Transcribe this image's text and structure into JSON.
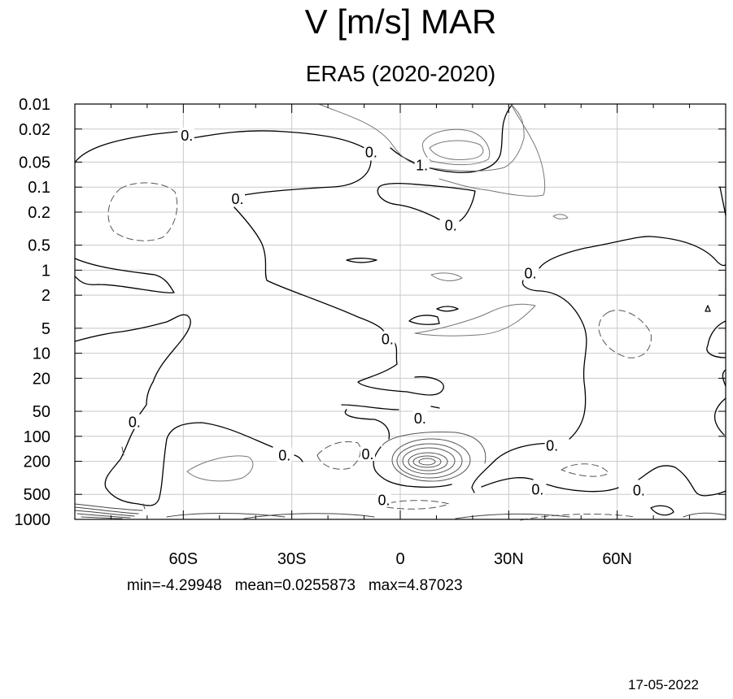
{
  "title": "V [m/s] MAR",
  "subtitle": "ERA5 (2020-2020)",
  "stats": {
    "min_label": "min=-4.29948",
    "mean_label": "mean=0.0255873",
    "max_label": "max=4.87023"
  },
  "date": "17-05-2022",
  "chart_data": {
    "type": "contour",
    "title": "ERA5 (2020-2020)",
    "variable": "V [m/s]",
    "y_scale": "log",
    "y_reversed": true,
    "grid": true,
    "xlim": [
      -90,
      90
    ],
    "ylim": [
      1000,
      0.01
    ],
    "x_ticks": [
      {
        "value": -60,
        "label": "60S"
      },
      {
        "value": -30,
        "label": "30S"
      },
      {
        "value": 0,
        "label": "0"
      },
      {
        "value": 30,
        "label": "30N"
      },
      {
        "value": 60,
        "label": "60N"
      }
    ],
    "y_ticks": [
      {
        "value": 0.01,
        "label": "0.01"
      },
      {
        "value": 0.02,
        "label": "0.02"
      },
      {
        "value": 0.05,
        "label": "0.05"
      },
      {
        "value": 0.1,
        "label": "0.1"
      },
      {
        "value": 0.2,
        "label": "0.2"
      },
      {
        "value": 0.5,
        "label": "0.5"
      },
      {
        "value": 1,
        "label": "1"
      },
      {
        "value": 2,
        "label": "2"
      },
      {
        "value": 5,
        "label": "5"
      },
      {
        "value": 10,
        "label": "10"
      },
      {
        "value": 20,
        "label": "20"
      },
      {
        "value": 50,
        "label": "50"
      },
      {
        "value": 100,
        "label": "100"
      },
      {
        "value": 200,
        "label": "200"
      },
      {
        "value": 500,
        "label": "500"
      },
      {
        "value": 1000,
        "label": "1000"
      }
    ],
    "contour_labels": [
      {
        "text": "0.",
        "lat": -59,
        "p": 0.024
      },
      {
        "text": "0.",
        "lat": -8,
        "p": 0.038
      },
      {
        "text": "0.",
        "lat": -45,
        "p": 0.14
      },
      {
        "text": "1.",
        "lat": 6,
        "p": 0.055
      },
      {
        "text": "0.",
        "lat": 14,
        "p": 0.29
      },
      {
        "text": "0.",
        "lat": 36,
        "p": 1.1
      },
      {
        "text": "0.",
        "lat": -3.5,
        "p": 6.8
      },
      {
        "text": "0.",
        "lat": 5.5,
        "p": 61
      },
      {
        "text": "0.",
        "lat": -73.5,
        "p": 68
      },
      {
        "text": "0.",
        "lat": -32,
        "p": 170
      },
      {
        "text": "0.",
        "lat": -9,
        "p": 165
      },
      {
        "text": "0.",
        "lat": 42,
        "p": 130
      },
      {
        "text": "0.",
        "lat": -4.5,
        "p": 590
      },
      {
        "text": "0.",
        "lat": 38,
        "p": 440
      },
      {
        "text": "0.",
        "lat": 66,
        "p": 450
      }
    ],
    "min": -4.29948,
    "mean": 0.0255873,
    "max": 4.87023
  }
}
